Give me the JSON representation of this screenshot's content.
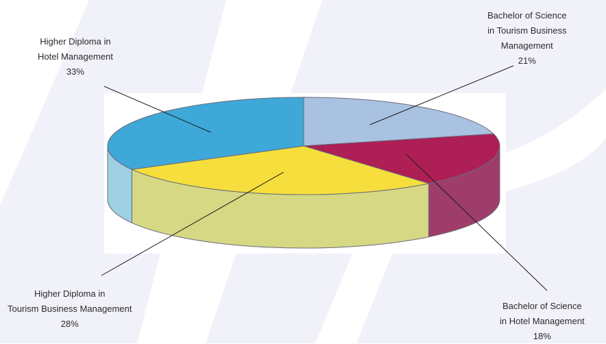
{
  "colors": {
    "background": "#ffffff",
    "watermark": "#f1f2f9",
    "plot_panel": "#ffffff",
    "outline": "#6a6a78",
    "leader": "#1a1a1a"
  },
  "chart_data": {
    "type": "pie",
    "style": "3d",
    "legend": "none",
    "grid": false,
    "slices": [
      {
        "label_lines": [
          "Bachelor of Science",
          "in Tourism Business",
          "Management"
        ],
        "pct_label": "21%",
        "value": 21,
        "color": "#a9c2e2",
        "side_color": "#8fb0d4"
      },
      {
        "label_lines": [
          "Bachelor of Science",
          "in Hotel Management"
        ],
        "pct_label": "18%",
        "value": 18,
        "color": "#ad1f55",
        "side_color": "#9f3d6a"
      },
      {
        "label_lines": [
          "Higher Diploma in",
          "Tourism Business Management"
        ],
        "pct_label": "28%",
        "value": 28,
        "color": "#f6df3c",
        "side_color": "#d6d884"
      },
      {
        "label_lines": [
          "Higher Diploma in",
          "Hotel Management"
        ],
        "pct_label": "33%",
        "value": 33,
        "color": "#3ea8d8",
        "side_color": "#9fcfe2"
      }
    ]
  }
}
